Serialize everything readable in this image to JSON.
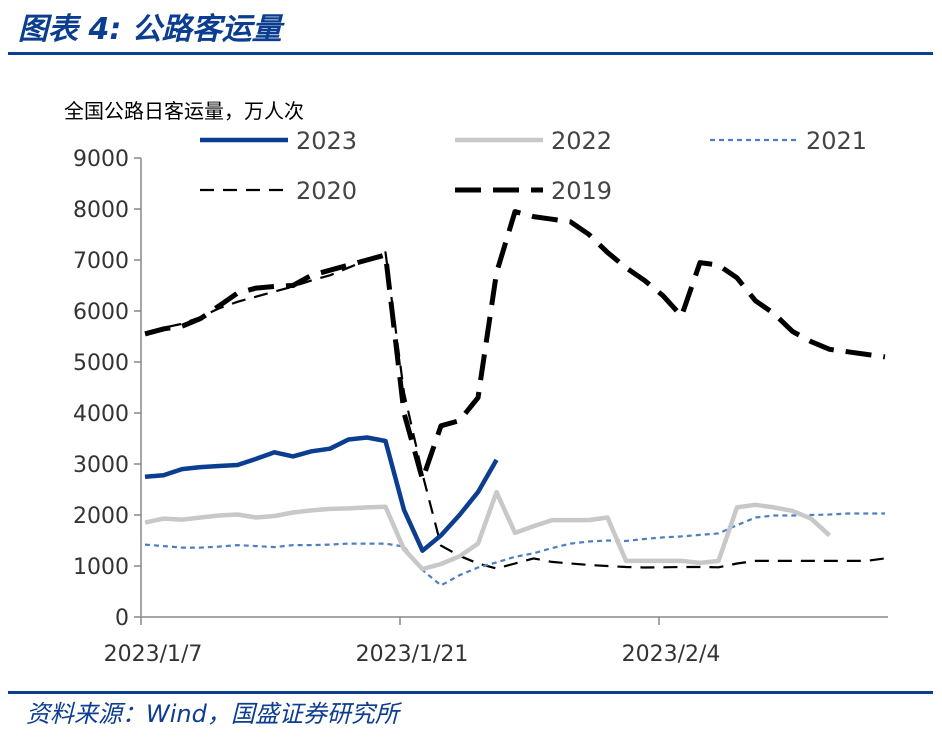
{
  "figure_title": "图表 4: 公路客运量",
  "source": "资料来源：Wind，国盛证券研究所",
  "chart_data": {
    "type": "line",
    "ylabel": "全国公路日客运量，万人次",
    "ylim": [
      0,
      9000
    ],
    "yticks": [
      0,
      1000,
      2000,
      3000,
      4000,
      5000,
      6000,
      7000,
      8000,
      9000
    ],
    "xtick_labels": [
      "2023/1/7",
      "2023/1/21",
      "2023/2/4"
    ],
    "xtick_day_index": [
      0,
      14,
      28
    ],
    "x_day_range": [
      0,
      40
    ],
    "legend_position": "top",
    "series": [
      {
        "name": "2023",
        "color": "#0b3d91",
        "values": [
          2750,
          2780,
          2900,
          2940,
          2960,
          2980,
          3100,
          3230,
          3150,
          3250,
          3300,
          3480,
          3520,
          3450,
          2100,
          1300,
          1600,
          2000,
          2450,
          3080
        ]
      },
      {
        "name": "2022",
        "color": "#c8c8c8",
        "values": [
          1850,
          1930,
          1910,
          1950,
          1990,
          2010,
          1950,
          1980,
          2050,
          2090,
          2120,
          2130,
          2150,
          2160,
          1330,
          940,
          1040,
          1190,
          1440,
          2450,
          1650,
          1780,
          1900,
          1900,
          1900,
          1950,
          1100,
          1100,
          1100,
          1100,
          1060,
          1100,
          2150,
          2200,
          2150,
          2080,
          1930,
          1600
        ]
      },
      {
        "name": "2021",
        "color": "#4f7fc1",
        "values": [
          1420,
          1390,
          1360,
          1360,
          1380,
          1410,
          1390,
          1370,
          1410,
          1410,
          1420,
          1440,
          1440,
          1440,
          1380,
          920,
          620,
          820,
          970,
          1070,
          1180,
          1250,
          1350,
          1440,
          1480,
          1500,
          1490,
          1530,
          1560,
          1580,
          1610,
          1640,
          1800,
          1950,
          1990,
          1990,
          2000,
          2010,
          2030,
          2030,
          2030
        ]
      },
      {
        "name": "2020",
        "color": "#000000",
        "values": [
          5580,
          5670,
          5750,
          5880,
          6050,
          6180,
          6280,
          6380,
          6480,
          6600,
          6700,
          6850,
          7000,
          7150,
          4400,
          2800,
          1400,
          1200,
          1050,
          950,
          1050,
          1150,
          1080,
          1050,
          1020,
          1000,
          980,
          970,
          975,
          980,
          980,
          975,
          1050,
          1100,
          1100,
          1100,
          1100,
          1100,
          1100,
          1100,
          1150
        ]
      },
      {
        "name": "2019",
        "color": "#000000",
        "values": [
          5550,
          5650,
          5700,
          5850,
          6100,
          6350,
          6450,
          6480,
          6500,
          6700,
          6800,
          6900,
          7000,
          7100,
          4000,
          2700,
          3750,
          3850,
          4300,
          6750,
          7950,
          7850,
          7800,
          7750,
          7500,
          7150,
          6850,
          6600,
          6300,
          5900,
          6950,
          6900,
          6650,
          6200,
          5950,
          5600,
          5400,
          5250,
          5200,
          5150,
          5100
        ]
      }
    ]
  }
}
